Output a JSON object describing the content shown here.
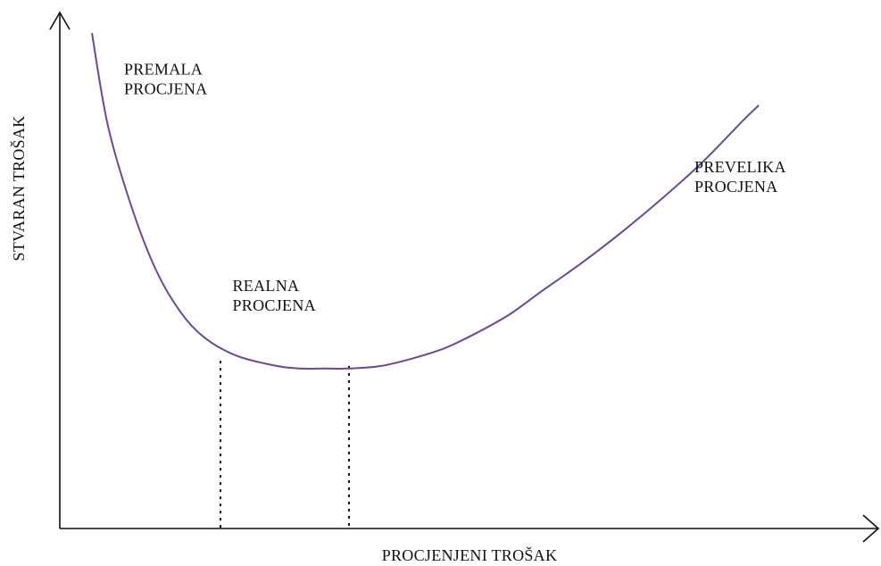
{
  "chart_data": {
    "type": "line",
    "title": "",
    "xlabel": "PROCJENJENI TROŠAK",
    "ylabel": "STVARAN TROŠAK",
    "xlim": [
      0,
      100
    ],
    "ylim": [
      0,
      100
    ],
    "grid": false,
    "legend": "none",
    "series": [
      {
        "color": "#6b4a8f",
        "x": [
          4,
          6,
          9,
          12,
          15,
          18,
          22,
          27,
          30,
          33,
          36,
          40,
          44,
          48,
          52,
          56,
          60,
          65,
          70,
          75,
          80,
          85,
          87
        ],
        "y": [
          96,
          78,
          62,
          50,
          42,
          37,
          33.5,
          31.5,
          31,
          31,
          31,
          31.5,
          33,
          35,
          38,
          41.5,
          46,
          51.5,
          57.5,
          64,
          71,
          79,
          82
        ]
      }
    ],
    "guides": [
      {
        "x": 20,
        "y": 32.5
      },
      {
        "x": 36,
        "y": 31.5
      }
    ],
    "annotations": [
      {
        "lines": [
          "PREMALA",
          "PROCJENA"
        ],
        "x": 8,
        "y": 88
      },
      {
        "lines": [
          "REALNA",
          "PROCJENA"
        ],
        "x": 21.5,
        "y": 46
      },
      {
        "lines": [
          "PREVELIKA",
          "PROCJENA"
        ],
        "x": 79,
        "y": 69
      }
    ]
  }
}
